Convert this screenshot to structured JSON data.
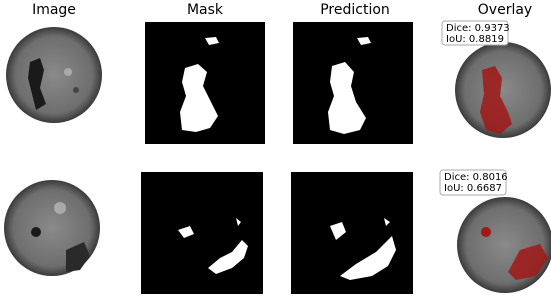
{
  "columns": [
    "Image",
    "Mask",
    "Prediction",
    "Overlay"
  ],
  "rows": [
    {
      "dice": "Dice: 0.9373",
      "iou": "IoU: 0.8819"
    },
    {
      "dice": "Dice: 0.8016",
      "iou": "IoU: 0.6687"
    }
  ]
}
